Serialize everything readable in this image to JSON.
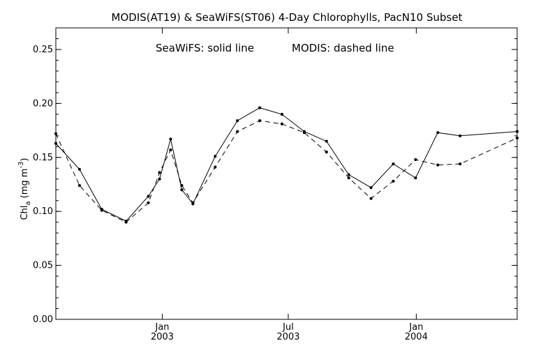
{
  "chart_data": {
    "type": "line",
    "title": "MODIS(AT19) & SeaWiFS(ST06) 4-Day Chlorophylls, PacN10 Subset",
    "annotation": {
      "solid_note": "SeaWiFS: solid line",
      "dashed_note": "MODIS: dashed line"
    },
    "ylabel": {
      "prefix": "Chl",
      "subscript": "a",
      "units_open": " (mg m",
      "superscript": "-3",
      "units_close": ")"
    },
    "ylim": [
      0.0,
      0.27
    ],
    "yticks": [
      "0.00",
      "0.05",
      "0.10",
      "0.15",
      "0.20",
      "0.25"
    ],
    "xlim": [
      "2002-08-01",
      "2004-05-25"
    ],
    "xticks": [
      {
        "date": "2003-01-01",
        "month": "Jan",
        "year": "2003"
      },
      {
        "date": "2003-07-01",
        "month": "Jul",
        "year": "2003"
      },
      {
        "date": "2004-01-01",
        "month": "Jan",
        "year": "2004"
      }
    ],
    "series": [
      {
        "name": "SeaWiFS",
        "style": "solid",
        "color": "#000000",
        "points": [
          {
            "x": "2002-08-01",
            "y": 0.163
          },
          {
            "x": "2002-09-04",
            "y": 0.139
          },
          {
            "x": "2002-10-06",
            "y": 0.102
          },
          {
            "x": "2002-11-10",
            "y": 0.091
          },
          {
            "x": "2002-12-12",
            "y": 0.114
          },
          {
            "x": "2002-12-28",
            "y": 0.13
          },
          {
            "x": "2003-01-13",
            "y": 0.167
          },
          {
            "x": "2003-01-29",
            "y": 0.12
          },
          {
            "x": "2003-02-14",
            "y": 0.107
          },
          {
            "x": "2003-03-18",
            "y": 0.151
          },
          {
            "x": "2003-04-19",
            "y": 0.184
          },
          {
            "x": "2003-05-21",
            "y": 0.196
          },
          {
            "x": "2003-06-22",
            "y": 0.19
          },
          {
            "x": "2003-07-24",
            "y": 0.174
          },
          {
            "x": "2003-08-25",
            "y": 0.165
          },
          {
            "x": "2003-09-26",
            "y": 0.134
          },
          {
            "x": "2003-10-28",
            "y": 0.122
          },
          {
            "x": "2003-11-29",
            "y": 0.144
          },
          {
            "x": "2003-12-31",
            "y": 0.131
          },
          {
            "x": "2004-02-01",
            "y": 0.173
          },
          {
            "x": "2004-03-04",
            "y": 0.17
          },
          {
            "x": "2004-05-25",
            "y": 0.174
          }
        ]
      },
      {
        "name": "MODIS",
        "style": "dashed",
        "color": "#000000",
        "points": [
          {
            "x": "2002-08-01",
            "y": 0.172
          },
          {
            "x": "2002-09-04",
            "y": 0.124
          },
          {
            "x": "2002-10-06",
            "y": 0.101
          },
          {
            "x": "2002-11-10",
            "y": 0.09
          },
          {
            "x": "2002-12-12",
            "y": 0.108
          },
          {
            "x": "2002-12-28",
            "y": 0.136
          },
          {
            "x": "2003-01-13",
            "y": 0.157
          },
          {
            "x": "2003-01-29",
            "y": 0.124
          },
          {
            "x": "2003-02-14",
            "y": 0.108
          },
          {
            "x": "2003-03-18",
            "y": 0.141
          },
          {
            "x": "2003-04-19",
            "y": 0.174
          },
          {
            "x": "2003-05-21",
            "y": 0.184
          },
          {
            "x": "2003-06-22",
            "y": 0.181
          },
          {
            "x": "2003-07-24",
            "y": 0.173
          },
          {
            "x": "2003-08-25",
            "y": 0.155
          },
          {
            "x": "2003-09-26",
            "y": 0.131
          },
          {
            "x": "2003-10-28",
            "y": 0.112
          },
          {
            "x": "2003-11-29",
            "y": 0.128
          },
          {
            "x": "2003-12-31",
            "y": 0.148
          },
          {
            "x": "2004-02-01",
            "y": 0.143
          },
          {
            "x": "2004-03-04",
            "y": 0.144
          },
          {
            "x": "2004-05-25",
            "y": 0.168
          }
        ]
      }
    ]
  }
}
